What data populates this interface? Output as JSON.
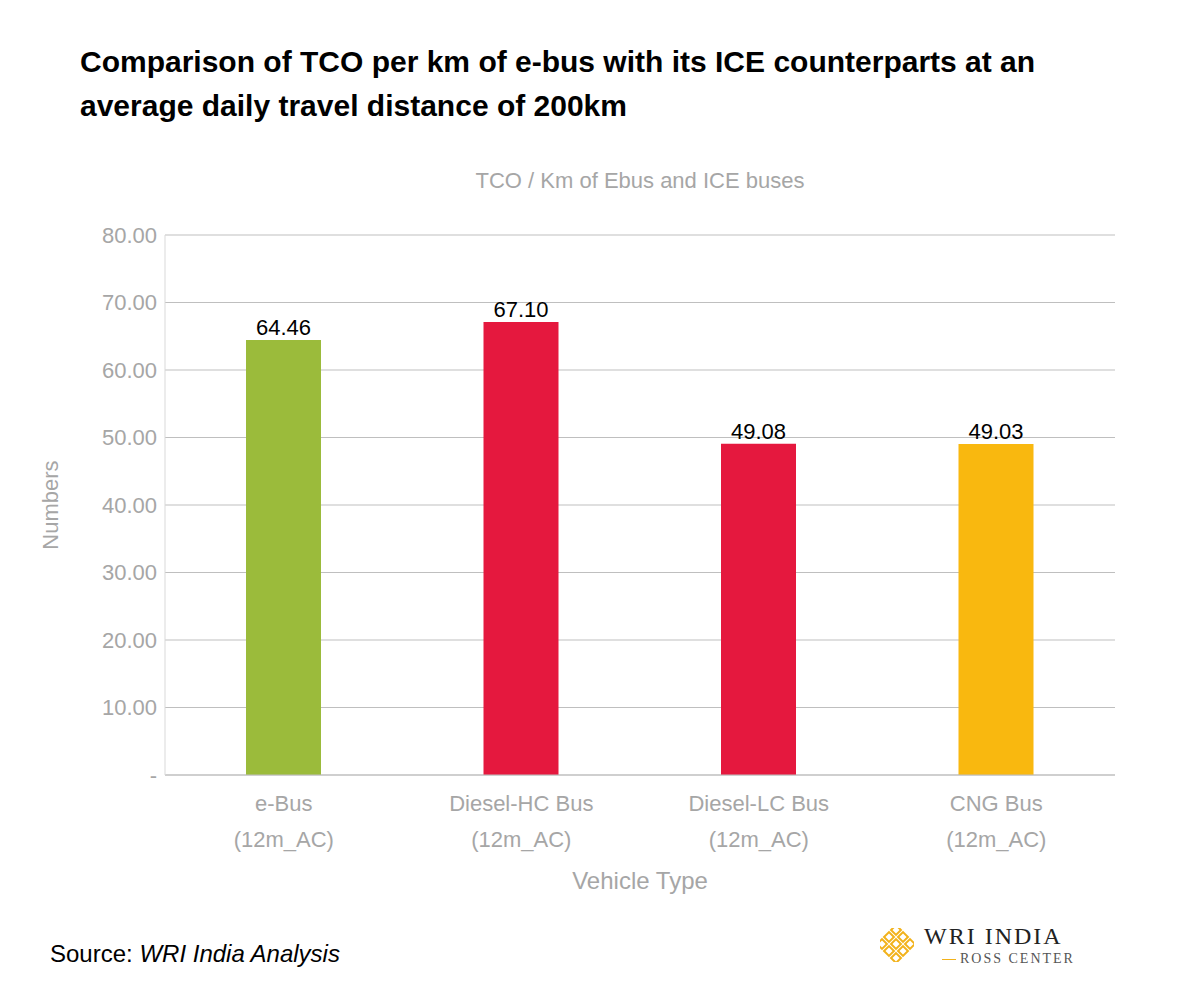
{
  "chart_data": {
    "type": "bar",
    "title": "Comparison of TCO per km of e-bus with its ICE counterparts at an average daily travel distance of 200km",
    "subtitle": "TCO / Km of Ebus and ICE buses",
    "x_label": "Vehicle Type",
    "y_label": "Numbers",
    "categories": [
      "e-Bus (12m_AC)",
      "Diesel-HC Bus (12m_AC)",
      "Diesel-LC Bus (12m_AC)",
      "CNG Bus (12m_AC)"
    ],
    "values": [
      64.46,
      67.1,
      49.08,
      49.03
    ],
    "value_labels": [
      "64.46",
      "67.10",
      "49.08",
      "49.03"
    ],
    "colors": [
      "#9bbb3b",
      "#e5183e",
      "#e5183e",
      "#f9b80f"
    ],
    "ylim": [
      0,
      80
    ],
    "yticks": [
      {
        "value": 0,
        "label": "-"
      },
      {
        "value": 10,
        "label": "10.00"
      },
      {
        "value": 20,
        "label": "20.00"
      },
      {
        "value": 30,
        "label": "30.00"
      },
      {
        "value": 40,
        "label": "40.00"
      },
      {
        "value": 50,
        "label": "50.00"
      },
      {
        "value": 60,
        "label": "60.00"
      },
      {
        "value": 70,
        "label": "70.00"
      },
      {
        "value": 80,
        "label": "80.00"
      }
    ],
    "grid": true,
    "data_labels": true,
    "source": {
      "label": "Source:",
      "text": "WRI India Analysis"
    },
    "logo": {
      "name": "WRI INDIA",
      "sub": "ROSS CENTER"
    }
  }
}
